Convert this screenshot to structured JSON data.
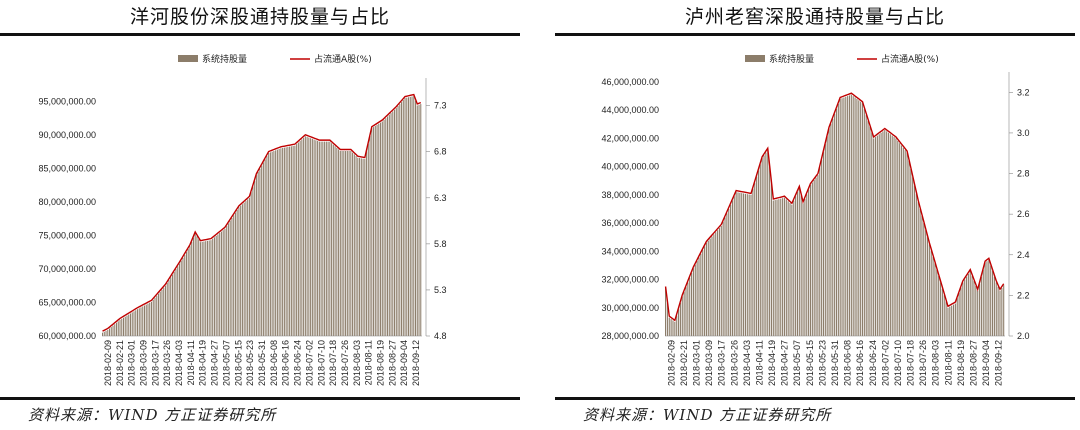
{
  "chart_data": [
    {
      "type": "bar+line",
      "title": "洋河股份深股通持股量与占比",
      "source": "资料来源：WIND 方正证券研究所",
      "legend": [
        "系统持股量",
        "占流通A股(%)"
      ],
      "legend_placement": "top",
      "left_axis": {
        "ticks": [
          "60,000,000.00",
          "65,000,000.00",
          "70,000,000.00",
          "75,000,000.00",
          "80,000,000.00",
          "85,000,000.00",
          "90,000,000.00",
          "95,000,000.00"
        ],
        "min": 60000000,
        "max": 97000000
      },
      "right_axis": {
        "ticks": [
          "4.8",
          "5.3",
          "5.8",
          "6.3",
          "6.8",
          "7.3"
        ],
        "min": 4.8,
        "max": 7.6
      },
      "x_ticks": [
        "2018-02-09",
        "2018-02-21",
        "2018-03-01",
        "2018-03-09",
        "2018-03-17",
        "2018-03-26",
        "2018-04-03",
        "2018-04-11",
        "2018-04-19",
        "2018-04-27",
        "2018-05-07",
        "2018-05-15",
        "2018-05-23",
        "2018-05-31",
        "2018-06-08",
        "2018-06-16",
        "2018-06-24",
        "2018-07-02",
        "2018-07-10",
        "2018-07-18",
        "2018-07-26",
        "2018-08-03",
        "2018-08-11",
        "2018-08-19",
        "2018-08-27",
        "2018-09-04",
        "2018-09-12"
      ],
      "series_anchors": [
        [
          0,
          60500000
        ],
        [
          3,
          60900000
        ],
        [
          10,
          62400000
        ],
        [
          20,
          64000000
        ],
        [
          28,
          65100000
        ],
        [
          36,
          67500000
        ],
        [
          44,
          70800000
        ],
        [
          50,
          73400000
        ],
        [
          53,
          75300000
        ],
        [
          56,
          74000000
        ],
        [
          62,
          74300000
        ],
        [
          70,
          76000000
        ],
        [
          78,
          79200000
        ],
        [
          84,
          80600000
        ],
        [
          88,
          84000000
        ],
        [
          95,
          87300000
        ],
        [
          102,
          88000000
        ],
        [
          110,
          88400000
        ],
        [
          116,
          89800000
        ],
        [
          124,
          89000000
        ],
        [
          130,
          89000000
        ],
        [
          136,
          87600000
        ],
        [
          142,
          87600000
        ],
        [
          146,
          86600000
        ],
        [
          150,
          86400000
        ],
        [
          154,
          91000000
        ],
        [
          160,
          92000000
        ],
        [
          168,
          94000000
        ],
        [
          173,
          95500000
        ],
        [
          178,
          95800000
        ],
        [
          180,
          94400000
        ],
        [
          182,
          94600000
        ]
      ]
    },
    {
      "type": "bar+line",
      "title": "泸州老窖深股通持股量与占比",
      "source": "资料来源：WIND 方正证券研究所",
      "legend": [
        "系统持股量",
        "占流通A股(%)"
      ],
      "legend_placement": "top",
      "left_axis": {
        "ticks": [
          "28,000,000.00",
          "30,000,000.00",
          "32,000,000.00",
          "34,000,000.00",
          "36,000,000.00",
          "38,000,000.00",
          "40,000,000.00",
          "42,000,000.00",
          "44,000,000.00",
          "46,000,000.00"
        ],
        "min": 28000000,
        "max": 46000000
      },
      "right_axis": {
        "ticks": [
          "2.0",
          "2.2",
          "2.4",
          "2.6",
          "2.8",
          "3.0",
          "3.2"
        ],
        "min": 2.0,
        "max": 3.3
      },
      "x_ticks": [
        "2018-02-09",
        "2018-02-21",
        "2018-03-01",
        "2018-03-09",
        "2018-03-17",
        "2018-03-26",
        "2018-04-03",
        "2018-04-11",
        "2018-04-19",
        "2018-04-27",
        "2018-05-07",
        "2018-05-15",
        "2018-05-23",
        "2018-05-31",
        "2018-06-08",
        "2018-06-16",
        "2018-06-24",
        "2018-07-02",
        "2018-07-10",
        "2018-07-18",
        "2018-07-26",
        "2018-08-03",
        "2018-08-11",
        "2018-08-19",
        "2018-08-27",
        "2018-09-04",
        "2018-09-12"
      ],
      "series_anchors": [
        [
          0,
          31400000
        ],
        [
          2,
          29300000
        ],
        [
          5,
          29000000
        ],
        [
          9,
          30800000
        ],
        [
          15,
          32800000
        ],
        [
          22,
          34600000
        ],
        [
          30,
          35800000
        ],
        [
          38,
          38200000
        ],
        [
          46,
          38000000
        ],
        [
          52,
          40600000
        ],
        [
          55,
          41200000
        ],
        [
          58,
          37600000
        ],
        [
          64,
          37800000
        ],
        [
          68,
          37300000
        ],
        [
          72,
          38500000
        ],
        [
          74,
          37400000
        ],
        [
          78,
          38700000
        ],
        [
          82,
          39400000
        ],
        [
          88,
          42700000
        ],
        [
          94,
          44800000
        ],
        [
          100,
          45100000
        ],
        [
          106,
          44500000
        ],
        [
          112,
          42000000
        ],
        [
          118,
          42600000
        ],
        [
          124,
          42000000
        ],
        [
          130,
          41000000
        ],
        [
          136,
          37500000
        ],
        [
          142,
          34500000
        ],
        [
          148,
          31800000
        ],
        [
          152,
          30000000
        ],
        [
          156,
          30300000
        ],
        [
          160,
          31800000
        ],
        [
          164,
          32600000
        ],
        [
          168,
          31200000
        ],
        [
          172,
          33200000
        ],
        [
          174,
          33400000
        ],
        [
          178,
          31800000
        ],
        [
          180,
          31200000
        ],
        [
          182,
          31600000
        ]
      ]
    }
  ],
  "colors": {
    "bar": "#8c7d6a",
    "line": "#c00000"
  }
}
